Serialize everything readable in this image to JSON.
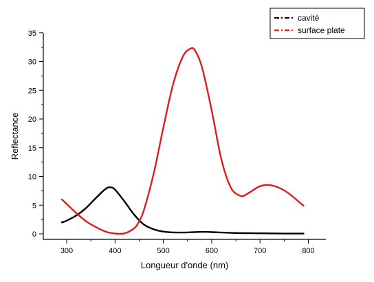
{
  "chart_data": {
    "type": "line",
    "title": "",
    "xlabel": "Longueur d'onde (nm)",
    "ylabel": "Reflectance",
    "xlim": [
      250,
      800
    ],
    "ylim": [
      -1,
      35
    ],
    "x_ticks": [
      300,
      400,
      500,
      600,
      700,
      800
    ],
    "y_ticks": [
      0,
      5,
      10,
      15,
      20,
      25,
      30,
      35
    ],
    "legend_position": "top-right",
    "grid": false,
    "series": [
      {
        "name": "cavité",
        "color": "#000000",
        "x": [
          290,
          300,
          320,
          340,
          360,
          380,
          390,
          400,
          420,
          440,
          460,
          480,
          500,
          520,
          550,
          580,
          600,
          650,
          700,
          750,
          790
        ],
        "y": [
          2.0,
          2.3,
          3.2,
          4.5,
          6.2,
          7.8,
          8.1,
          7.7,
          5.6,
          3.3,
          1.6,
          0.8,
          0.4,
          0.25,
          0.25,
          0.35,
          0.3,
          0.15,
          0.1,
          0.05,
          0.05
        ]
      },
      {
        "name": "surface plate",
        "color": "#e31a1c",
        "x": [
          290,
          300,
          320,
          340,
          360,
          380,
          400,
          420,
          440,
          450,
          460,
          480,
          500,
          520,
          540,
          555,
          565,
          580,
          600,
          620,
          640,
          660,
          670,
          680,
          700,
          720,
          740,
          760,
          790
        ],
        "y": [
          6.0,
          5.2,
          3.6,
          2.2,
          1.2,
          0.4,
          0.05,
          0.1,
          1.0,
          2.2,
          4.2,
          10.5,
          18.5,
          26.0,
          30.8,
          32.2,
          32.0,
          29.0,
          21.5,
          13.0,
          8.0,
          6.6,
          6.8,
          7.3,
          8.3,
          8.5,
          8.0,
          7.0,
          4.9
        ]
      }
    ]
  }
}
